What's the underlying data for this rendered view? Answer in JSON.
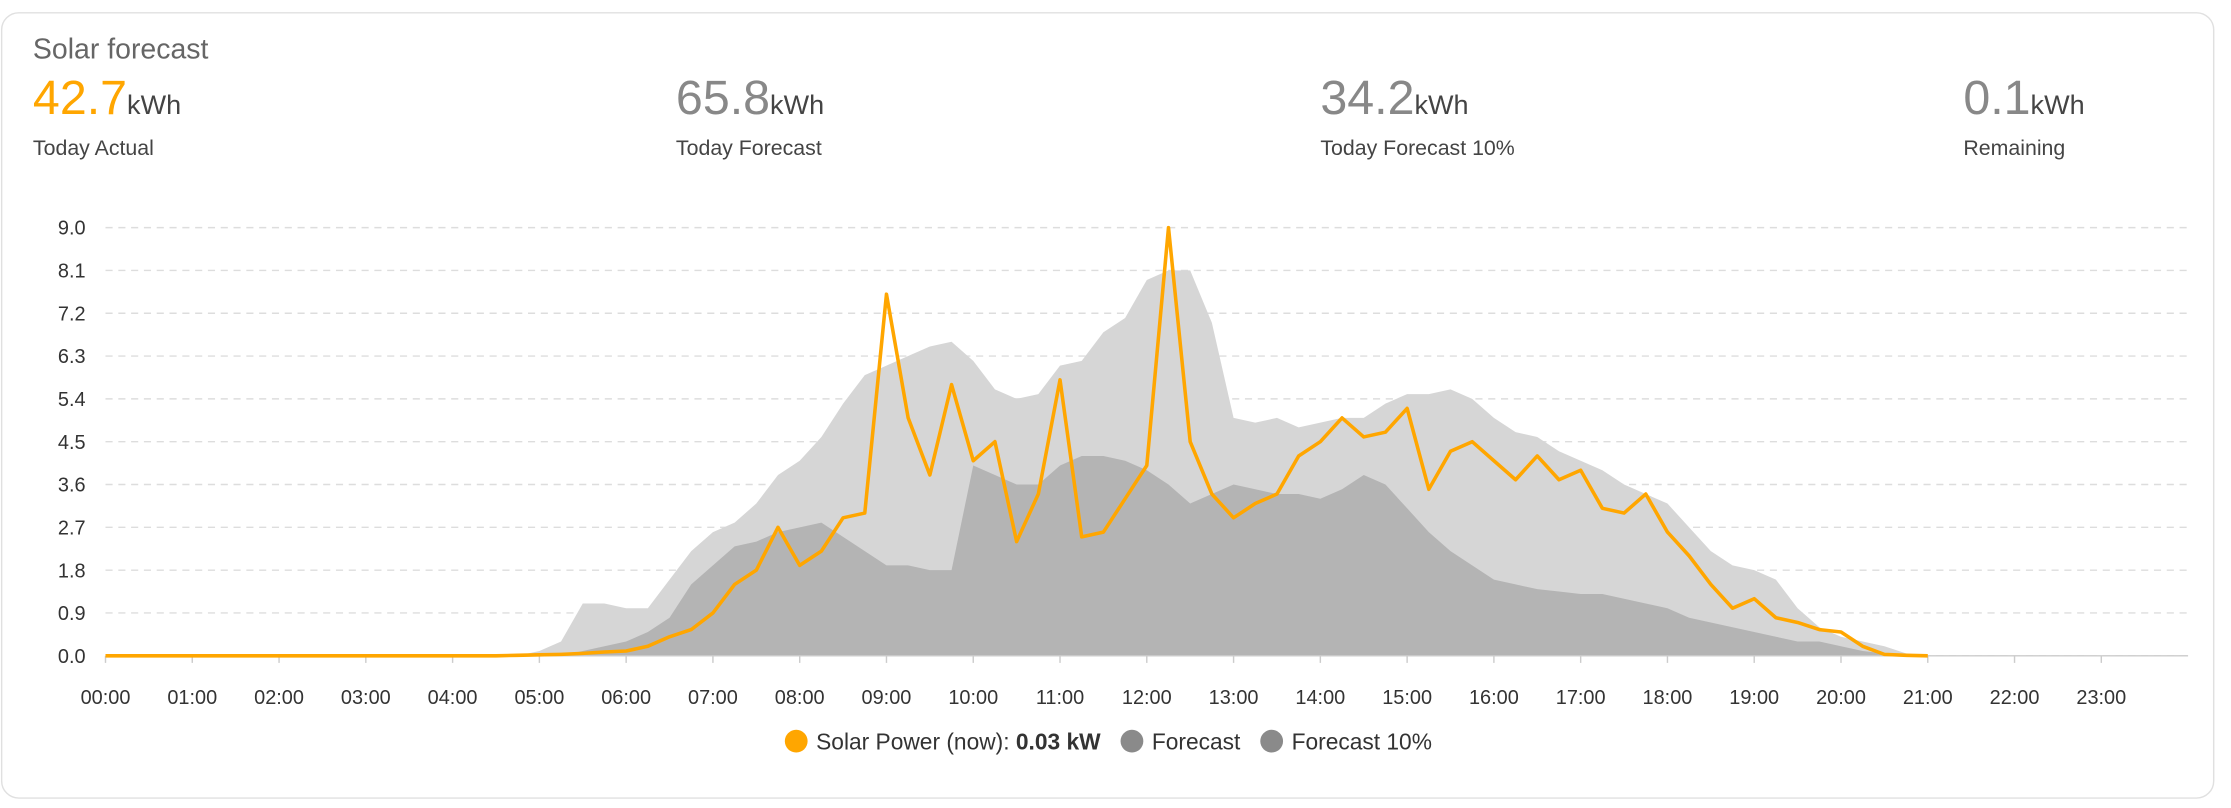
{
  "header": {
    "title": "Solar forecast",
    "stats": [
      {
        "value": "42.7",
        "unit": "kWh",
        "label": "Today Actual"
      },
      {
        "value": "65.8",
        "unit": "kWh",
        "label": "Today Forecast"
      },
      {
        "value": "34.2",
        "unit": "kWh",
        "label": "Today Forecast 10%"
      },
      {
        "value": "0.1",
        "unit": "kWh",
        "label": "Remaining"
      }
    ]
  },
  "chart_data": {
    "type": "line-area",
    "x": [
      "00:00",
      "00:15",
      "00:30",
      "00:45",
      "01:00",
      "01:15",
      "01:30",
      "01:45",
      "02:00",
      "02:15",
      "02:30",
      "02:45",
      "03:00",
      "03:15",
      "03:30",
      "03:45",
      "04:00",
      "04:15",
      "04:30",
      "04:45",
      "05:00",
      "05:15",
      "05:30",
      "05:45",
      "06:00",
      "06:15",
      "06:30",
      "06:45",
      "07:00",
      "07:15",
      "07:30",
      "07:45",
      "08:00",
      "08:15",
      "08:30",
      "08:45",
      "09:00",
      "09:15",
      "09:30",
      "09:45",
      "10:00",
      "10:15",
      "10:30",
      "10:45",
      "11:00",
      "11:15",
      "11:30",
      "11:45",
      "12:00",
      "12:15",
      "12:30",
      "12:45",
      "13:00",
      "13:15",
      "13:30",
      "13:45",
      "14:00",
      "14:15",
      "14:30",
      "14:45",
      "15:00",
      "15:15",
      "15:30",
      "15:45",
      "16:00",
      "16:15",
      "16:30",
      "16:45",
      "17:00",
      "17:15",
      "17:30",
      "17:45",
      "18:00",
      "18:15",
      "18:30",
      "18:45",
      "19:00",
      "19:15",
      "19:30",
      "19:45",
      "20:00",
      "20:15",
      "20:30",
      "20:45",
      "21:00"
    ],
    "series": [
      {
        "name": "Forecast",
        "color": "#d6d6d6",
        "kind": "area",
        "values": [
          0,
          0,
          0,
          0,
          0,
          0,
          0,
          0,
          0,
          0,
          0,
          0,
          0,
          0,
          0,
          0,
          0,
          0,
          0,
          0,
          0.1,
          0.3,
          1.1,
          1.1,
          1.0,
          1.0,
          1.6,
          2.2,
          2.6,
          2.8,
          3.2,
          3.8,
          4.1,
          4.6,
          5.3,
          5.9,
          6.1,
          6.3,
          6.5,
          6.6,
          6.2,
          5.6,
          5.4,
          5.5,
          6.1,
          6.2,
          6.8,
          7.1,
          7.9,
          8.1,
          8.1,
          7.0,
          5.0,
          4.9,
          5.0,
          4.8,
          4.9,
          5.0,
          5.0,
          5.3,
          5.5,
          5.5,
          5.6,
          5.4,
          5.0,
          4.7,
          4.6,
          4.3,
          4.1,
          3.9,
          3.6,
          3.4,
          3.2,
          2.7,
          2.2,
          1.9,
          1.8,
          1.6,
          1.0,
          0.6,
          0.4,
          0.3,
          0.2,
          0.05,
          0
        ]
      },
      {
        "name": "Forecast 10%",
        "color": "#b4b4b4",
        "kind": "area",
        "values": [
          0,
          0,
          0,
          0,
          0,
          0,
          0,
          0,
          0,
          0,
          0,
          0,
          0,
          0,
          0,
          0,
          0,
          0,
          0,
          0,
          0,
          0,
          0.1,
          0.2,
          0.3,
          0.5,
          0.8,
          1.5,
          1.9,
          2.3,
          2.4,
          2.6,
          2.7,
          2.8,
          2.5,
          2.2,
          1.9,
          1.9,
          1.8,
          1.8,
          4.0,
          3.8,
          3.6,
          3.6,
          4.0,
          4.2,
          4.2,
          4.1,
          3.9,
          3.6,
          3.2,
          3.4,
          3.6,
          3.5,
          3.4,
          3.4,
          3.3,
          3.5,
          3.8,
          3.6,
          3.1,
          2.6,
          2.2,
          1.9,
          1.6,
          1.5,
          1.4,
          1.35,
          1.3,
          1.3,
          1.2,
          1.1,
          1.0,
          0.8,
          0.7,
          0.6,
          0.5,
          0.4,
          0.3,
          0.3,
          0.2,
          0.1,
          0.05,
          0,
          0
        ]
      },
      {
        "name": "Solar Power (now):",
        "legend_value": "0.03 kW",
        "color": "#ffa600",
        "kind": "line",
        "values": [
          0,
          0,
          0,
          0,
          0,
          0,
          0,
          0,
          0,
          0,
          0,
          0,
          0,
          0,
          0,
          0,
          0,
          0,
          0,
          0.01,
          0.02,
          0.03,
          0.05,
          0.08,
          0.1,
          0.2,
          0.4,
          0.55,
          0.9,
          1.5,
          1.8,
          2.7,
          1.9,
          2.2,
          2.9,
          3.0,
          7.6,
          5.0,
          3.8,
          5.7,
          4.1,
          4.5,
          2.4,
          3.4,
          5.8,
          2.5,
          2.6,
          3.3,
          4.0,
          9.0,
          4.5,
          3.4,
          2.9,
          3.2,
          3.4,
          4.2,
          4.5,
          5.0,
          4.6,
          4.7,
          5.2,
          3.5,
          4.3,
          4.5,
          4.1,
          3.7,
          4.2,
          3.7,
          3.9,
          3.1,
          3.0,
          3.4,
          2.6,
          2.1,
          1.5,
          1.0,
          1.2,
          0.8,
          0.7,
          0.55,
          0.5,
          0.2,
          0.03,
          0.01,
          0
        ]
      }
    ],
    "xlim": [
      "00:00",
      "24:00"
    ],
    "xticks": [
      "00:00",
      "01:00",
      "02:00",
      "03:00",
      "04:00",
      "05:00",
      "06:00",
      "07:00",
      "08:00",
      "09:00",
      "10:00",
      "11:00",
      "12:00",
      "13:00",
      "14:00",
      "15:00",
      "16:00",
      "17:00",
      "18:00",
      "19:00",
      "20:00",
      "21:00",
      "22:00",
      "23:00"
    ],
    "ylim": [
      0,
      9
    ],
    "yticks": [
      {
        "value": 0,
        "label": "0.0"
      },
      0.9,
      1.8,
      2.7,
      3.6,
      4.5,
      5.4,
      6.3,
      7.2,
      8.1,
      {
        "value": 9,
        "label": "9.0"
      }
    ],
    "grid": true
  }
}
